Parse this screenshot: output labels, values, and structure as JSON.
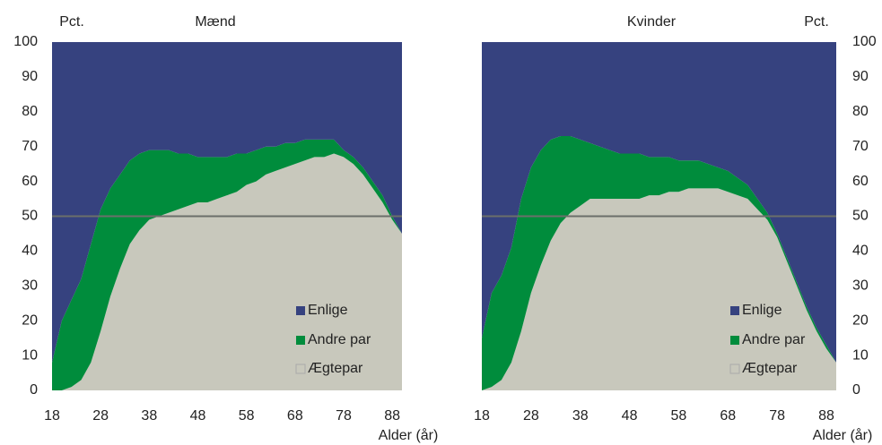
{
  "chart_data": [
    {
      "type": "stacked_area",
      "title": "Mænd",
      "y_label": "Pct.",
      "x_label": "Alder (år)",
      "yaxis_side": "left",
      "x": [
        18,
        20,
        22,
        24,
        26,
        28,
        30,
        32,
        34,
        36,
        38,
        40,
        42,
        44,
        46,
        48,
        50,
        52,
        54,
        56,
        58,
        60,
        62,
        64,
        66,
        68,
        70,
        72,
        74,
        76,
        78,
        80,
        82,
        84,
        86,
        88,
        90
      ],
      "series": [
        {
          "name": "Enlige",
          "color": "#36427f",
          "values": [
            92,
            80,
            74,
            68,
            58,
            48,
            42,
            38,
            34,
            32,
            31,
            31,
            31,
            32,
            32,
            33,
            33,
            33,
            33,
            32,
            32,
            31,
            30,
            30,
            29,
            29,
            28,
            28,
            28,
            28,
            31,
            33,
            36,
            40,
            44,
            50,
            55
          ]
        },
        {
          "name": "Andre par",
          "color": "#008c3c",
          "values": [
            8,
            20,
            25,
            29,
            34,
            35,
            31,
            27,
            24,
            22,
            20,
            19,
            18,
            16,
            15,
            13,
            13,
            12,
            11,
            11,
            9,
            9,
            8,
            7,
            7,
            6,
            6,
            5,
            5,
            4,
            2,
            2,
            2,
            2,
            2,
            1,
            0
          ]
        },
        {
          "name": "Ægtepar",
          "color": "#c8c8bc",
          "values": [
            0,
            0,
            1,
            3,
            8,
            17,
            27,
            35,
            42,
            46,
            49,
            50,
            51,
            52,
            53,
            54,
            54,
            55,
            56,
            57,
            59,
            60,
            62,
            63,
            64,
            65,
            66,
            67,
            67,
            68,
            67,
            65,
            62,
            58,
            54,
            49,
            45
          ]
        }
      ],
      "xlim": [
        18,
        90
      ],
      "ylim": [
        0,
        100
      ],
      "xticks": [
        18,
        28,
        38,
        48,
        58,
        68,
        78,
        88
      ],
      "yticks": [
        0,
        10,
        20,
        30,
        40,
        50,
        60,
        70,
        80,
        90,
        100
      ],
      "reference_line": 50,
      "reference_color": "#6b6f6a"
    },
    {
      "type": "stacked_area",
      "title": "Kvinder",
      "y_label": "Pct.",
      "x_label": "Alder (år)",
      "yaxis_side": "right",
      "x": [
        18,
        20,
        22,
        24,
        26,
        28,
        30,
        32,
        34,
        36,
        38,
        40,
        42,
        44,
        46,
        48,
        50,
        52,
        54,
        56,
        58,
        60,
        62,
        64,
        66,
        68,
        70,
        72,
        74,
        76,
        78,
        80,
        82,
        84,
        86,
        88,
        90
      ],
      "series": [
        {
          "name": "Enlige",
          "color": "#36427f",
          "values": [
            85,
            72,
            67,
            59,
            45,
            36,
            31,
            28,
            27,
            27,
            28,
            29,
            30,
            31,
            32,
            32,
            32,
            33,
            33,
            33,
            34,
            34,
            34,
            35,
            36,
            37,
            39,
            41,
            45,
            49,
            55,
            62,
            69,
            76,
            82,
            87,
            92
          ]
        },
        {
          "name": "Andre par",
          "color": "#008c3c",
          "values": [
            15,
            27,
            30,
            33,
            38,
            36,
            33,
            29,
            25,
            22,
            19,
            16,
            15,
            14,
            13,
            13,
            13,
            11,
            11,
            10,
            9,
            8,
            8,
            7,
            6,
            6,
            5,
            4,
            3,
            2,
            1,
            1,
            1,
            1,
            1,
            1,
            0
          ]
        },
        {
          "name": "Ægtepar",
          "color": "#c8c8bc",
          "values": [
            0,
            1,
            3,
            8,
            17,
            28,
            36,
            43,
            48,
            51,
            53,
            55,
            55,
            55,
            55,
            55,
            55,
            56,
            56,
            57,
            57,
            58,
            58,
            58,
            58,
            57,
            56,
            55,
            52,
            49,
            44,
            37,
            30,
            23,
            17,
            12,
            8
          ]
        }
      ],
      "xlim": [
        18,
        90
      ],
      "ylim": [
        0,
        100
      ],
      "xticks": [
        18,
        28,
        38,
        48,
        58,
        68,
        78,
        88
      ],
      "yticks": [
        0,
        10,
        20,
        30,
        40,
        50,
        60,
        70,
        80,
        90,
        100
      ],
      "reference_line": 50,
      "reference_color": "#6b6f6a"
    }
  ]
}
